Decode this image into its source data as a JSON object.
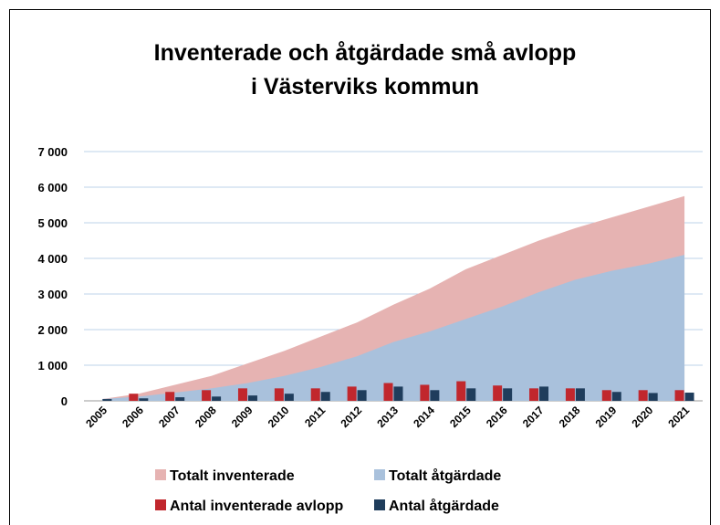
{
  "chart_data": {
    "type": "combo",
    "title": [
      "Inventerade och åtgärdade små avlopp",
      "i Västerviks kommun"
    ],
    "categories": [
      "2005",
      "2006",
      "2007",
      "2008",
      "2009",
      "2010",
      "2011",
      "2012",
      "2013",
      "2014",
      "2015",
      "2016",
      "2017",
      "2018",
      "2019",
      "2020",
      "2021"
    ],
    "series": [
      {
        "name": "Totalt inventerade",
        "type": "area",
        "color": "#e6b3b2",
        "values": [
          50,
          200,
          450,
          700,
          1050,
          1400,
          1800,
          2200,
          2700,
          3150,
          3700,
          4100,
          4500,
          4850,
          5150,
          5450,
          5750
        ]
      },
      {
        "name": "Totalt åtgärdade",
        "type": "area",
        "color": "#a9c1dc",
        "values": [
          50,
          120,
          230,
          350,
          500,
          700,
          950,
          1250,
          1650,
          1950,
          2300,
          2650,
          3050,
          3400,
          3650,
          3850,
          4100
        ]
      },
      {
        "name": "Antal inventerade avlopp",
        "type": "bar",
        "color": "#c1272d",
        "values": [
          null,
          200,
          250,
          300,
          350,
          350,
          350,
          400,
          500,
          450,
          550,
          430,
          350,
          350,
          300,
          300,
          300
        ]
      },
      {
        "name": "Antal åtgärdade",
        "type": "bar",
        "color": "#1f3d5c",
        "values": [
          50,
          70,
          100,
          120,
          150,
          200,
          250,
          300,
          400,
          300,
          350,
          350,
          400,
          350,
          250,
          220,
          230
        ]
      }
    ],
    "ylim": [
      0,
      7000
    ],
    "yticks": [
      0,
      {
        "value": 1000,
        "label": "1 000"
      },
      {
        "value": 2000,
        "label": "2 000"
      },
      {
        "value": 3000,
        "label": "3 000"
      },
      {
        "value": 4000,
        "label": "4 000"
      },
      {
        "value": 5000,
        "label": "5 000"
      },
      {
        "value": 6000,
        "label": "6 000"
      },
      {
        "value": 7000,
        "label": "7 000"
      }
    ],
    "grid": true
  }
}
